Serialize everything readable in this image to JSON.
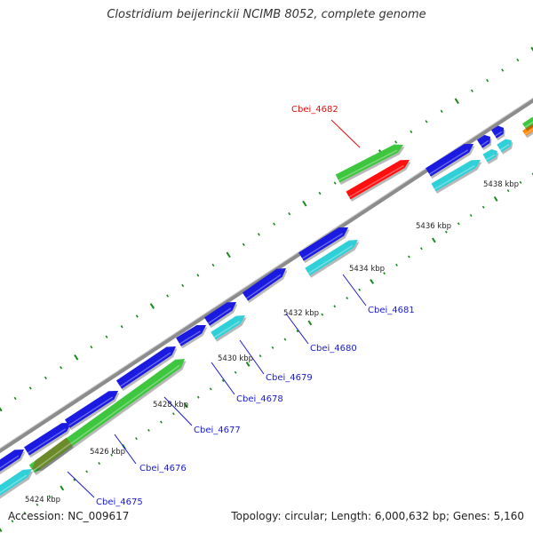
{
  "title": "Clostridium beijerinckii NCIMB 8052, complete genome",
  "footer": {
    "accession": "Accession: NC_009617",
    "summary": "Topology: circular; Length: 6,000,632 bp; Genes: 5,160"
  },
  "colors": {
    "backbone": "#8c8c8c",
    "cds_blue": "#1a1ae0",
    "gene_cyan": "#30d0d8",
    "green": "#3ec63e",
    "olive": "#6b8a2a",
    "red": "#ff1010",
    "orange": "#ff8a00",
    "tick_green": "#1a8a1a",
    "label_blue": "#1a1ad0",
    "label_red": "#e01010"
  },
  "kbp_labels": [
    "5424 kbp",
    "5426 kbp",
    "5428 kbp",
    "5430 kbp",
    "5432 kbp",
    "5434 kbp",
    "5436 kbp",
    "5438 kbp"
  ],
  "gene_labels": [
    "Cbei_4675",
    "Cbei_4676",
    "Cbei_4677",
    "Cbei_4678",
    "Cbei_4679",
    "Cbei_4680",
    "Cbei_4681",
    "Cbei_4682"
  ]
}
